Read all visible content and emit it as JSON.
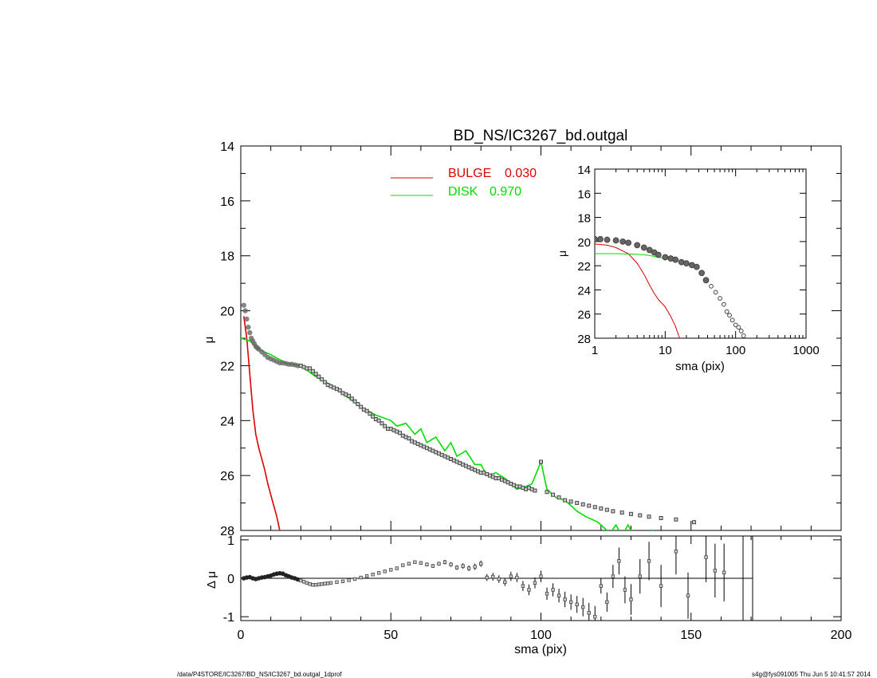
{
  "chart_data": [
    {
      "type": "scatter",
      "panel": "main-profile",
      "title": "BD_NS/IC3267_bd.outgal",
      "xlabel": "",
      "ylabel": "μ",
      "xlim": [
        0,
        200
      ],
      "ylim": [
        28,
        14
      ],
      "y_inverted": true,
      "y_ticks": [
        "14",
        "16",
        "18",
        "20",
        "22",
        "24",
        "26",
        "28"
      ],
      "legend_placement": "top-center",
      "legend": [
        {
          "name": "BULGE",
          "value": "0.030",
          "color": "#dd0000"
        },
        {
          "name": "DISK",
          "value": "0.970",
          "color": "#00dd00"
        }
      ],
      "series": [
        {
          "name": "BULGE",
          "kind": "line",
          "color": "#dd0000",
          "x": [
            1,
            2,
            3,
            4,
            5,
            6,
            7,
            8,
            9,
            10,
            11,
            12,
            13,
            14,
            15,
            16
          ],
          "y": [
            20.2,
            21.0,
            22.3,
            23.6,
            24.5,
            25.0,
            25.4,
            25.8,
            26.3,
            26.7,
            27.1,
            27.5,
            28.0,
            28.5,
            29.0,
            29.6
          ]
        },
        {
          "name": "DISK",
          "kind": "line",
          "color": "#00dd00",
          "x": [
            0,
            3,
            6,
            10,
            15,
            20,
            25,
            30,
            35,
            40,
            45,
            50,
            52,
            55,
            58,
            60,
            62,
            65,
            68,
            70,
            72,
            75,
            78,
            80,
            82,
            85,
            88,
            90,
            92,
            95,
            97,
            100,
            102,
            105,
            108,
            110,
            112,
            115,
            117,
            119,
            121,
            123,
            125,
            127,
            129,
            131,
            133,
            135,
            137,
            139
          ],
          "y": [
            21.0,
            21.1,
            21.4,
            21.6,
            21.9,
            22.0,
            22.4,
            22.7,
            23.1,
            23.5,
            23.8,
            24.0,
            24.2,
            24.1,
            24.5,
            24.3,
            24.8,
            24.6,
            25.1,
            24.8,
            25.3,
            25.1,
            25.6,
            25.6,
            26.0,
            25.9,
            26.1,
            26.3,
            26.5,
            26.4,
            26.3,
            25.5,
            26.5,
            26.8,
            26.9,
            27.1,
            27.3,
            27.5,
            27.6,
            27.7,
            27.9,
            28.1,
            27.8,
            28.2,
            27.8,
            28.2,
            28.5,
            28.8,
            28.0,
            28.3
          ]
        },
        {
          "name": "data",
          "kind": "points",
          "color": "#555555",
          "x": [
            1,
            1.5,
            2,
            2.5,
            3,
            3.5,
            4,
            4.5,
            5,
            5.5,
            6,
            7,
            8,
            9,
            10,
            11,
            12,
            13,
            14,
            15,
            16,
            17,
            18,
            19,
            20,
            21,
            22,
            23,
            24,
            25,
            26,
            27,
            28,
            29,
            30,
            31,
            32,
            33,
            34,
            35,
            36,
            37,
            38,
            39,
            40,
            41,
            42,
            43,
            44,
            45,
            46,
            47,
            48,
            49,
            50,
            51,
            52,
            53,
            54,
            55,
            56,
            57,
            58,
            59,
            60,
            61,
            62,
            63,
            64,
            65,
            66,
            67,
            68,
            69,
            70,
            71,
            72,
            73,
            74,
            75,
            76,
            77,
            78,
            79,
            80,
            81,
            82,
            83,
            84,
            85,
            86,
            87,
            88,
            89,
            90,
            91,
            92,
            93,
            94,
            95,
            96,
            97,
            98,
            100,
            102,
            104,
            106,
            108,
            110,
            112,
            114,
            116,
            118,
            120,
            122,
            124,
            127,
            130,
            133,
            136,
            140,
            145,
            151
          ],
          "y": [
            19.8,
            20.0,
            20.3,
            20.6,
            20.8,
            21.0,
            21.1,
            21.2,
            21.3,
            21.35,
            21.4,
            21.5,
            21.6,
            21.7,
            21.75,
            21.8,
            21.85,
            21.9,
            21.9,
            21.92,
            21.95,
            21.95,
            21.97,
            22.0,
            22.0,
            22.05,
            22.1,
            22.1,
            22.2,
            22.3,
            22.4,
            22.5,
            22.6,
            22.7,
            22.75,
            22.8,
            22.85,
            22.9,
            23.0,
            23.05,
            23.1,
            23.2,
            23.3,
            23.4,
            23.5,
            23.6,
            23.65,
            23.75,
            23.85,
            23.95,
            24.0,
            24.1,
            24.2,
            24.3,
            24.3,
            24.35,
            24.4,
            24.45,
            24.55,
            24.6,
            24.65,
            24.75,
            24.8,
            24.85,
            24.9,
            24.95,
            25.0,
            25.05,
            25.1,
            25.15,
            25.2,
            25.25,
            25.3,
            25.35,
            25.4,
            25.45,
            25.5,
            25.55,
            25.6,
            25.65,
            25.7,
            25.75,
            25.8,
            25.85,
            25.9,
            25.9,
            25.95,
            26.0,
            26.05,
            26.1,
            26.1,
            26.15,
            26.2,
            26.25,
            26.3,
            26.35,
            26.4,
            26.4,
            26.45,
            26.5,
            26.45,
            26.5,
            26.55,
            25.5,
            26.6,
            26.7,
            26.8,
            26.9,
            26.95,
            27.0,
            27.05,
            27.1,
            27.15,
            27.2,
            27.25,
            27.3,
            27.35,
            27.4,
            27.45,
            27.5,
            27.55,
            27.6,
            27.7
          ]
        }
      ]
    },
    {
      "type": "scatter",
      "panel": "inset-log-profile",
      "xlabel": "sma (pix)",
      "ylabel": "μ",
      "x_scale": "log",
      "xlim": [
        1,
        1000
      ],
      "ylim": [
        28,
        14
      ],
      "y_inverted": true,
      "x_ticks": [
        "1",
        "10",
        "100",
        "1000"
      ],
      "y_ticks": [
        "14",
        "16",
        "18",
        "20",
        "22",
        "24",
        "26",
        "28"
      ],
      "series": [
        {
          "name": "BULGE",
          "kind": "line",
          "color": "#dd0000",
          "x": [
            1,
            1.5,
            2,
            3,
            4,
            5,
            6,
            7,
            8,
            10,
            12,
            14,
            16
          ],
          "y": [
            20.2,
            20.3,
            20.5,
            21.0,
            21.8,
            22.7,
            23.6,
            24.3,
            24.8,
            25.4,
            26.2,
            27.0,
            28.0
          ]
        },
        {
          "name": "DISK",
          "kind": "line",
          "color": "#00dd00",
          "x": [
            1,
            2,
            4,
            6,
            8,
            10
          ],
          "y": [
            21.0,
            21.0,
            21.05,
            21.15,
            21.3,
            21.4
          ]
        },
        {
          "name": "data",
          "kind": "points",
          "color": "#555555",
          "x": [
            1,
            1.2,
            1.5,
            2,
            2.5,
            3,
            4,
            5,
            6,
            7,
            8,
            10,
            12,
            14,
            17,
            20,
            24,
            28,
            33,
            38,
            45,
            52,
            60,
            68,
            75,
            82,
            90,
            100,
            110,
            120,
            130
          ],
          "y": [
            19.8,
            19.8,
            19.85,
            19.9,
            20.0,
            20.1,
            20.3,
            20.5,
            20.7,
            20.9,
            21.1,
            21.3,
            21.4,
            21.5,
            21.7,
            21.8,
            21.95,
            22.1,
            22.6,
            23.2,
            23.7,
            24.2,
            24.7,
            25.2,
            25.8,
            26.1,
            26.5,
            26.9,
            27.1,
            27.4,
            27.8
          ]
        }
      ]
    },
    {
      "type": "scatter",
      "panel": "residuals",
      "xlabel": "sma (pix)",
      "ylabel": "Δ μ",
      "xlim": [
        0,
        200
      ],
      "ylim": [
        -1.1,
        1.1
      ],
      "x_ticks": [
        "0",
        "50",
        "100",
        "150",
        "200"
      ],
      "y_ticks": [
        "1",
        "0",
        "-1"
      ],
      "series": [
        {
          "name": "residual",
          "kind": "points",
          "color": "#555555",
          "x": [
            1,
            2,
            3,
            4,
            5,
            6,
            7,
            8,
            9,
            10,
            11,
            12,
            13,
            14,
            15,
            16,
            17,
            18,
            19,
            20,
            21,
            22,
            23,
            24,
            25,
            26,
            27,
            28,
            29,
            30,
            32,
            34,
            36,
            38,
            40,
            42,
            44,
            46,
            48,
            50,
            52,
            54,
            56,
            58,
            60,
            62,
            64,
            66,
            68,
            70,
            72,
            74,
            76,
            78,
            80,
            82,
            84,
            86,
            88,
            90,
            92,
            94,
            96,
            98,
            100,
            102,
            104,
            106,
            108,
            110,
            112,
            114,
            116,
            118,
            120,
            122,
            124,
            126,
            128,
            130,
            133,
            136,
            140,
            145,
            149,
            155,
            158,
            161
          ],
          "y": [
            0.0,
            0.02,
            0.03,
            0.0,
            -0.02,
            0.0,
            0.02,
            0.03,
            0.05,
            0.07,
            0.1,
            0.12,
            0.13,
            0.12,
            0.08,
            0.05,
            0.02,
            0.0,
            -0.03,
            -0.06,
            -0.09,
            -0.12,
            -0.15,
            -0.17,
            -0.17,
            -0.16,
            -0.15,
            -0.14,
            -0.13,
            -0.12,
            -0.1,
            -0.08,
            -0.05,
            -0.02,
            0.02,
            0.06,
            0.1,
            0.14,
            0.18,
            0.22,
            0.26,
            0.34,
            0.38,
            0.42,
            0.4,
            0.36,
            0.32,
            0.38,
            0.42,
            0.36,
            0.28,
            0.32,
            0.26,
            0.3,
            0.38,
            0.02,
            0.04,
            -0.02,
            -0.1,
            0.05,
            0.02,
            -0.2,
            -0.3,
            -0.12,
            0.05,
            -0.4,
            -0.3,
            -0.45,
            -0.55,
            -0.62,
            -0.68,
            -0.75,
            -0.9,
            -1.0,
            -0.2,
            -0.62,
            0.05,
            0.45,
            -0.3,
            -0.55,
            0.05,
            0.45,
            -0.2,
            0.7,
            -0.45,
            0.55,
            0.2,
            0.15
          ],
          "yerr": [
            0.01,
            0.01,
            0.01,
            0.01,
            0.01,
            0.01,
            0.01,
            0.01,
            0.01,
            0.01,
            0.01,
            0.01,
            0.01,
            0.01,
            0.01,
            0.01,
            0.01,
            0.01,
            0.01,
            0.01,
            0.01,
            0.01,
            0.01,
            0.01,
            0.01,
            0.01,
            0.01,
            0.01,
            0.01,
            0.01,
            0.01,
            0.01,
            0.01,
            0.01,
            0.02,
            0.02,
            0.02,
            0.02,
            0.02,
            0.03,
            0.03,
            0.03,
            0.04,
            0.04,
            0.04,
            0.05,
            0.05,
            0.05,
            0.06,
            0.06,
            0.06,
            0.07,
            0.07,
            0.08,
            0.08,
            0.09,
            0.1,
            0.1,
            0.1,
            0.12,
            0.12,
            0.13,
            0.14,
            0.14,
            0.15,
            0.16,
            0.17,
            0.18,
            0.2,
            0.2,
            0.22,
            0.24,
            0.26,
            0.28,
            0.2,
            0.25,
            0.3,
            0.35,
            0.35,
            0.4,
            0.45,
            0.5,
            0.55,
            0.6,
            0.6,
            0.65,
            0.7,
            0.75
          ]
        }
      ],
      "reference_line": 0
    }
  ],
  "footer": {
    "left": "/data/P4STORE/IC3267/BD_NS/IC3267_bd.outgal_1dprof",
    "right": "s4g@fys091005  Thu Jun  5 10:41:57 2014"
  },
  "colors": {
    "bulge": "#dd0000",
    "disk": "#00dd00",
    "data": "#555555",
    "axes": "#000000"
  }
}
